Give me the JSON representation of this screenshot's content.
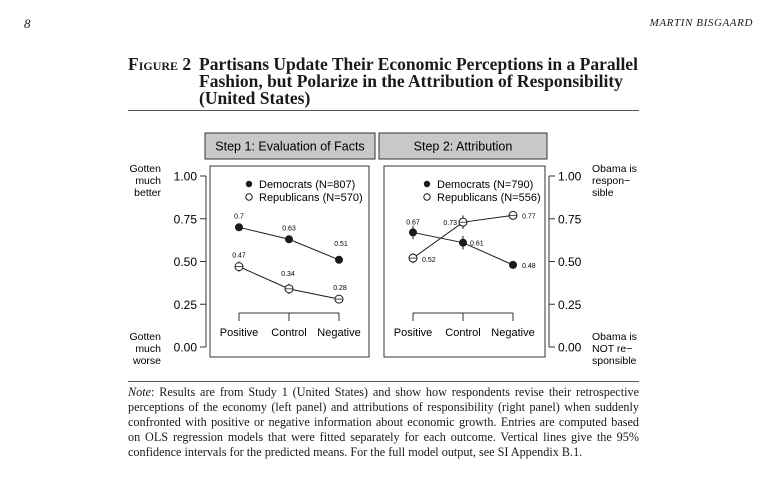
{
  "page_number": "8",
  "running_head": "MARTIN BISGAARD",
  "figure": {
    "label": "Figure 2",
    "title": "Partisans Update Their Economic Perceptions in a Parallel Fashion, but Polarize in the Attribution of Responsibility (United States)"
  },
  "note": {
    "lead": "Note",
    "text": ": Results are from Study 1 (United States) and show how respondents revise their retrospective perceptions of the economy (left panel) and attributions of responsibility (right panel) when suddenly confronted with positive or negative information about economic growth. Entries are computed based on OLS regression models that were fitted separately for each outcome. Vertical lines give the 95% confidence intervals for the predicted means. For the full model output, see SI Appendix B.1."
  },
  "colors": {
    "header_fill": "#c8c8c8",
    "marker_fill": "#1a1a1a",
    "axis": "#333333"
  },
  "chart_data": [
    {
      "type": "line",
      "title": "Step 1: Evaluation of Facts",
      "categories": [
        "Positive",
        "Control",
        "Negative"
      ],
      "ylim": [
        0,
        1
      ],
      "yticks": [
        "0.00",
        "0.25",
        "0.50",
        "0.75",
        "1.00"
      ],
      "ylabel_top": [
        "Gotten",
        "much",
        "better"
      ],
      "ylabel_bottom": [
        "Gotten",
        "much",
        "worse"
      ],
      "legend_position": "top-right",
      "series": [
        {
          "name": "Democrats",
          "n_label": "(N=807)",
          "marker": "filled",
          "values": [
            0.7,
            0.63,
            0.51
          ],
          "labels": [
            "0.7",
            "0.63",
            "0.51"
          ],
          "ci": [
            [
              0.68,
              0.72
            ],
            [
              0.61,
              0.65
            ],
            [
              0.49,
              0.53
            ]
          ]
        },
        {
          "name": "Republicans",
          "n_label": "(N=570)",
          "marker": "open",
          "values": [
            0.47,
            0.34,
            0.28
          ],
          "labels": [
            "0.47",
            "0.34",
            "0.28"
          ],
          "ci": [
            [
              0.44,
              0.5
            ],
            [
              0.31,
              0.37
            ],
            [
              0.26,
              0.3
            ]
          ]
        }
      ]
    },
    {
      "type": "line",
      "title": "Step 2: Attribution",
      "categories": [
        "Positive",
        "Control",
        "Negative"
      ],
      "ylim": [
        0,
        1
      ],
      "yticks": [
        "0.00",
        "0.25",
        "0.50",
        "0.75",
        "1.00"
      ],
      "ylabel_top": [
        "Obama is",
        "respon−",
        "sible"
      ],
      "ylabel_bottom": [
        "Obama is",
        "NOT re−",
        "sponsible"
      ],
      "legend_position": "top-right",
      "series": [
        {
          "name": "Democrats",
          "n_label": "(N=790)",
          "marker": "filled",
          "values": [
            0.67,
            0.61,
            0.48
          ],
          "labels": [
            "0.67",
            "0.61",
            "0.48"
          ],
          "ci": [
            [
              0.63,
              0.71
            ],
            [
              0.57,
              0.65
            ],
            [
              0.46,
              0.5
            ]
          ]
        },
        {
          "name": "Republicans",
          "n_label": "(N=556)",
          "marker": "open",
          "values": [
            0.52,
            0.73,
            0.77
          ],
          "labels": [
            "0.52",
            "0.73",
            "0.77"
          ],
          "ci": [
            [
              0.49,
              0.55
            ],
            [
              0.69,
              0.77
            ],
            [
              0.75,
              0.79
            ]
          ]
        }
      ]
    }
  ]
}
